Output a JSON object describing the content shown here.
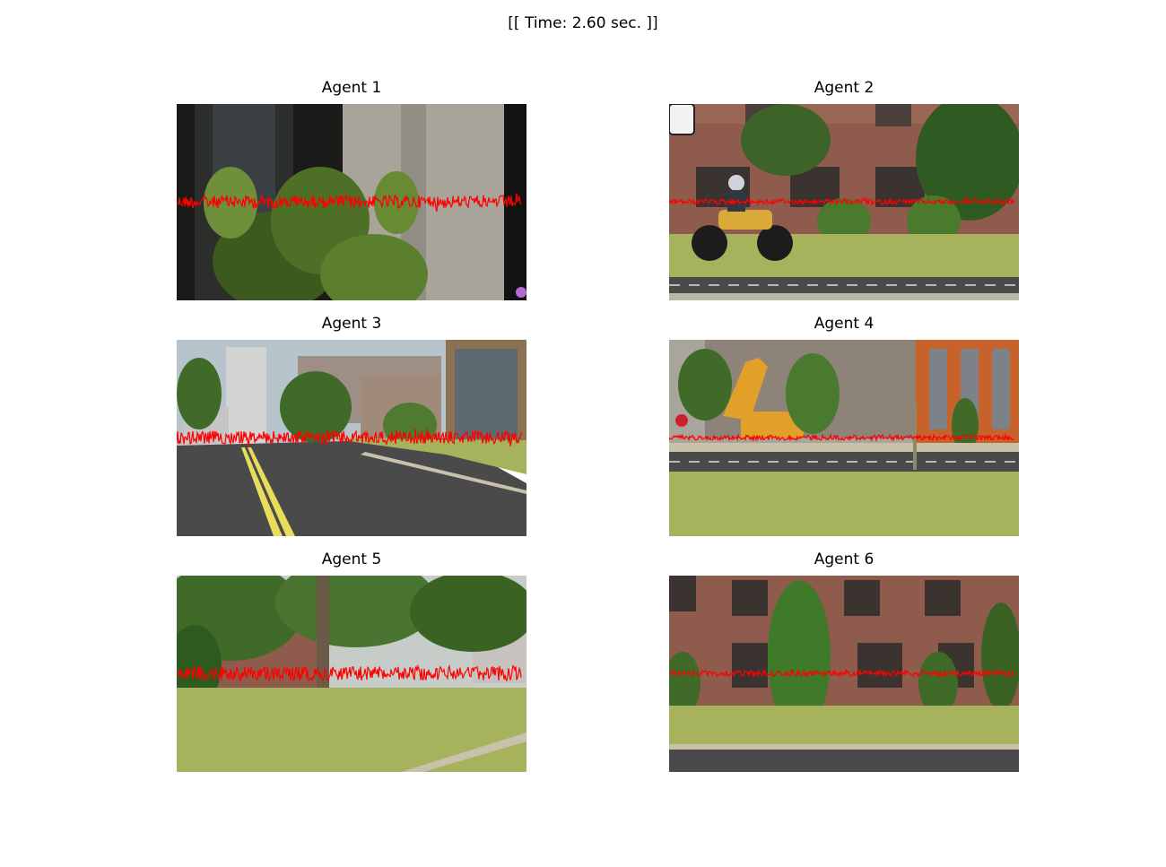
{
  "figure": {
    "suptitle": "[[ Time: 2.60 sec. ]]"
  },
  "colors": {
    "signal": "#ff0000",
    "grass": "#a7b25d",
    "road": "#4a4a4a",
    "brick": "#8e5b4c",
    "sky": "#b7c4cc",
    "tree": "#3f6a28"
  },
  "panels": [
    {
      "title": "Agent 1",
      "scene": "dark-window-bush",
      "signal_amplitude": 0.9
    },
    {
      "title": "Agent 2",
      "scene": "brick-building-motorcycle",
      "signal_amplitude": 0.35
    },
    {
      "title": "Agent 3",
      "scene": "street-buildings",
      "signal_amplitude": 0.9
    },
    {
      "title": "Agent 4",
      "scene": "excavator-buildings",
      "signal_amplitude": 0.35
    },
    {
      "title": "Agent 5",
      "scene": "park-trees",
      "signal_amplitude": 1.0
    },
    {
      "title": "Agent 6",
      "scene": "brick-building-tree",
      "signal_amplitude": 0.4
    }
  ]
}
